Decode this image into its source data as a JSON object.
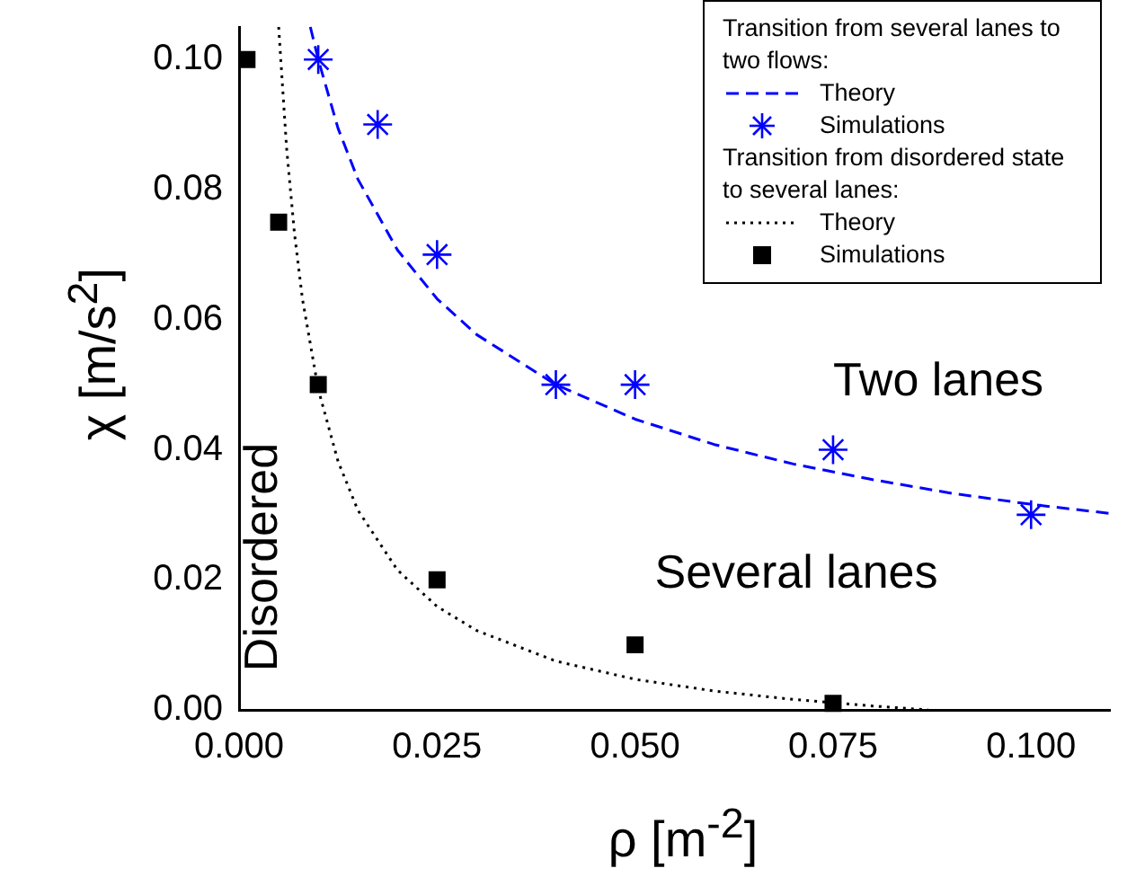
{
  "chart_data": {
    "type": "scatter",
    "xlabel": "ρ [m$^{-2}$]",
    "ylabel": "χ [m/s$^{2}$]",
    "xlim": [
      0,
      0.11
    ],
    "ylim": [
      0,
      0.105
    ],
    "xticks": [
      {
        "value": 0,
        "label": "0.000"
      },
      {
        "value": 0.025,
        "label": "0.025"
      },
      {
        "value": 0.05,
        "label": "0.050"
      },
      {
        "value": 0.075,
        "label": "0.075"
      },
      {
        "value": 0.1,
        "label": "0.100"
      }
    ],
    "yticks": [
      {
        "value": 0,
        "label": "0.00"
      },
      {
        "value": 0.02,
        "label": "0.02"
      },
      {
        "value": 0.04,
        "label": "0.04"
      },
      {
        "value": 0.06,
        "label": "0.06"
      },
      {
        "value": 0.08,
        "label": "0.08"
      },
      {
        "value": 0.1,
        "label": "0.10"
      }
    ],
    "grid": false,
    "legend": "top right",
    "series": [
      {
        "name": "Theory",
        "type": "line",
        "color": "#0000ff",
        "marker": "none",
        "line_style": "dashed",
        "x": [
          0.009,
          0.01,
          0.0125,
          0.015,
          0.02,
          0.025,
          0.03,
          0.04,
          0.05,
          0.06,
          0.07,
          0.08,
          0.09,
          0.1,
          0.11
        ],
        "values": [
          0.105,
          0.1,
          0.0894,
          0.0816,
          0.0707,
          0.0632,
          0.0577,
          0.05,
          0.0447,
          0.0408,
          0.0378,
          0.0354,
          0.0333,
          0.0316,
          0.0302
        ]
      },
      {
        "name": "Simulations",
        "type": "scatter",
        "color": "#0000ff",
        "marker": "cross",
        "x": [
          0.01,
          0.0175,
          0.025,
          0.04,
          0.05,
          0.075,
          0.1
        ],
        "values": [
          0.1,
          0.09,
          0.07,
          0.05,
          0.05,
          0.04,
          0.03
        ]
      },
      {
        "name": "Theory",
        "type": "line",
        "color": "#000000",
        "marker": "none",
        "line_style": "dotted",
        "x": [
          0.005,
          0.006,
          0.007,
          0.008,
          0.01,
          0.0125,
          0.015,
          0.02,
          0.025,
          0.03,
          0.04,
          0.05,
          0.06,
          0.07,
          0.08,
          0.087
        ],
        "values": [
          0.105,
          0.0864,
          0.0732,
          0.0632,
          0.0493,
          0.0382,
          0.0307,
          0.0215,
          0.0159,
          0.0122,
          0.0075,
          0.0047,
          0.0029,
          0.0016,
          0.0006,
          0
        ]
      },
      {
        "name": "Simulations",
        "type": "scatter",
        "color": "#000000",
        "marker": "square",
        "x": [
          0.001,
          0.005,
          0.01,
          0.025,
          0.05,
          0.075
        ],
        "values": [
          0.1,
          0.075,
          0.05,
          0.02,
          0.01,
          0.001
        ]
      }
    ],
    "annotations": [
      "Transition from several lanes to two flows:",
      "Transition from disordered state to several lanes:",
      "Two lanes",
      "Several lanes",
      "Disordered"
    ]
  }
}
